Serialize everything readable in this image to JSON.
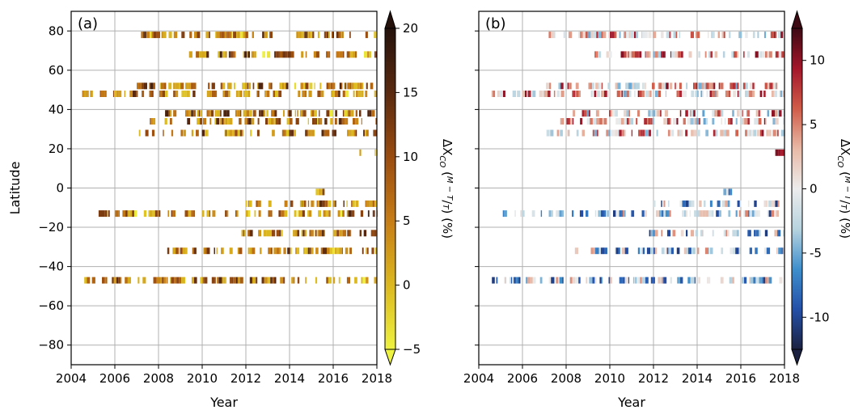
{
  "chart_data": [
    {
      "type": "heatmap",
      "panel_label": "(a)",
      "xlabel": "Year",
      "ylabel": "Latitude",
      "xlim": [
        2004,
        2018
      ],
      "ylim": [
        -90,
        90
      ],
      "xticks": [
        2004,
        2006,
        2008,
        2010,
        2012,
        2014,
        2016,
        2018
      ],
      "xtick_labels": [
        "2004",
        "2006",
        "2008",
        "2010",
        "2012",
        "2014",
        "2016",
        "2018"
      ],
      "yticks": [
        80,
        60,
        40,
        20,
        0,
        -20,
        -40,
        -60,
        -80
      ],
      "ytick_labels": [
        "80",
        "60",
        "40",
        "20",
        "0",
        "−20",
        "−40",
        "−60",
        "−80"
      ],
      "grid": true,
      "colorbar": {
        "label": "ΔX",
        "label_sub": "CO",
        "label_frac_num": "M − T",
        "label_frac_den": "T",
        "label_unit": "(%)",
        "range": [
          -5,
          20
        ],
        "ticks": [
          20,
          15,
          10,
          5,
          0,
          -5
        ],
        "tick_labels": [
          "20",
          "15",
          "10",
          "5",
          "0",
          "−5"
        ],
        "extend": "both",
        "colormap": "yellow-orange-brown",
        "colors": [
          "#eef240",
          "#dcb81f",
          "#c77d16",
          "#9a4c10",
          "#5a2a10",
          "#25120c"
        ]
      },
      "rows": [
        {
          "lat": 78,
          "start": 2007.2,
          "end": 2018.0
        },
        {
          "lat": 68,
          "start": 2009.3,
          "end": 2018.0
        },
        {
          "lat": 52,
          "start": 2007.0,
          "end": 2018.0
        },
        {
          "lat": 48,
          "start": 2004.5,
          "end": 2018.0
        },
        {
          "lat": 38,
          "start": 2008.3,
          "end": 2018.0
        },
        {
          "lat": 34,
          "start": 2007.6,
          "end": 2018.0
        },
        {
          "lat": 28,
          "start": 2007.1,
          "end": 2018.0
        },
        {
          "lat": 18,
          "start": 2017.2,
          "end": 2018.0
        },
        {
          "lat": -2,
          "start": 2015.2,
          "end": 2015.6
        },
        {
          "lat": -8,
          "start": 2012.0,
          "end": 2018.0
        },
        {
          "lat": -13,
          "start": 2005.1,
          "end": 2018.0
        },
        {
          "lat": -23,
          "start": 2011.8,
          "end": 2018.0
        },
        {
          "lat": -32,
          "start": 2008.4,
          "end": 2018.0
        },
        {
          "lat": -47,
          "start": 2004.6,
          "end": 2018.0
        }
      ]
    },
    {
      "type": "heatmap",
      "panel_label": "(b)",
      "xlabel": "Year",
      "ylabel": "",
      "xlim": [
        2004,
        2018
      ],
      "ylim": [
        -90,
        90
      ],
      "xticks": [
        2004,
        2006,
        2008,
        2010,
        2012,
        2014,
        2016,
        2018
      ],
      "xtick_labels": [
        "2004",
        "2006",
        "2008",
        "2010",
        "2012",
        "2014",
        "2016",
        "2018"
      ],
      "yticks": [
        80,
        60,
        40,
        20,
        0,
        -20,
        -40,
        -60,
        -80
      ],
      "ytick_labels": [],
      "grid": true,
      "colorbar": {
        "label": "ΔX",
        "label_sub": "CO",
        "label_frac_num": "M − T",
        "label_frac_den": "T",
        "label_unit": "(%)",
        "range": [
          -12.5,
          12.5
        ],
        "ticks": [
          10,
          5,
          0,
          -5,
          -10
        ],
        "tick_labels": [
          "10",
          "5",
          "0",
          "-5",
          "-10"
        ],
        "extend": "both",
        "colormap": "diverging blue-white-red",
        "colors": [
          "#1b2140",
          "#2450a8",
          "#3f8fcc",
          "#b7d3df",
          "#ececec",
          "#e8b9a6",
          "#cf5c49",
          "#a3162a",
          "#3d0a14"
        ]
      },
      "rows": [
        {
          "lat": 78,
          "start": 2007.2,
          "end": 2018.0
        },
        {
          "lat": 68,
          "start": 2009.3,
          "end": 2018.0
        },
        {
          "lat": 52,
          "start": 2007.0,
          "end": 2018.0
        },
        {
          "lat": 48,
          "start": 2004.5,
          "end": 2018.0
        },
        {
          "lat": 38,
          "start": 2008.3,
          "end": 2018.0
        },
        {
          "lat": 34,
          "start": 2007.6,
          "end": 2018.0
        },
        {
          "lat": 28,
          "start": 2007.1,
          "end": 2018.0
        },
        {
          "lat": 18,
          "start": 2017.2,
          "end": 2018.0
        },
        {
          "lat": -2,
          "start": 2015.2,
          "end": 2015.6
        },
        {
          "lat": -8,
          "start": 2012.0,
          "end": 2018.0
        },
        {
          "lat": -13,
          "start": 2005.1,
          "end": 2018.0
        },
        {
          "lat": -23,
          "start": 2011.8,
          "end": 2018.0
        },
        {
          "lat": -32,
          "start": 2008.4,
          "end": 2018.0
        },
        {
          "lat": -47,
          "start": 2004.6,
          "end": 2018.0
        }
      ]
    }
  ]
}
